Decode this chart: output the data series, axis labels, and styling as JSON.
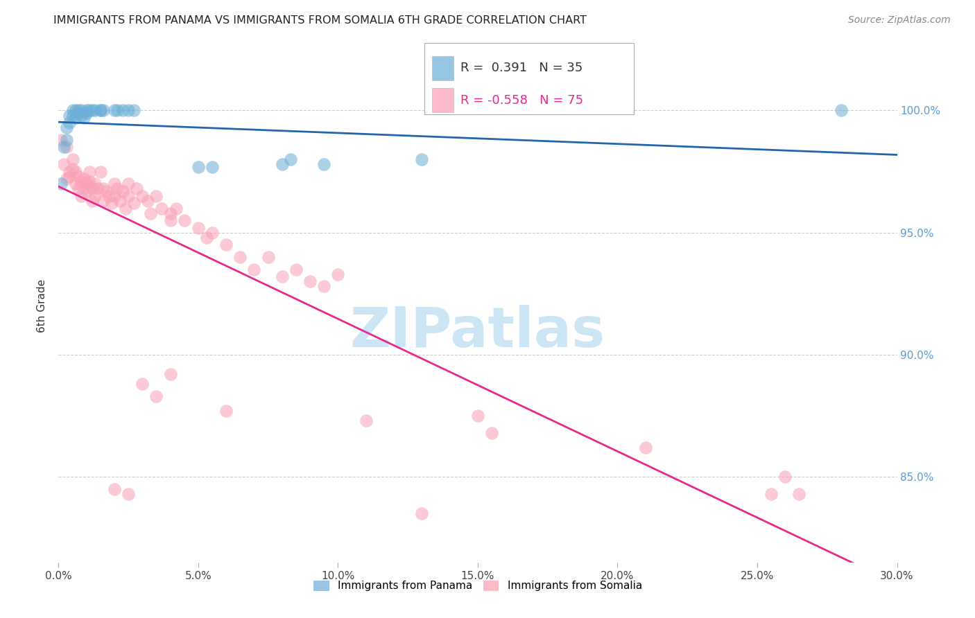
{
  "title": "IMMIGRANTS FROM PANAMA VS IMMIGRANTS FROM SOMALIA 6TH GRADE CORRELATION CHART",
  "source": "Source: ZipAtlas.com",
  "xlabel_ticks": [
    "0.0%",
    "5.0%",
    "10.0%",
    "15.0%",
    "20.0%",
    "25.0%",
    "30.0%"
  ],
  "xlabel_vals": [
    0.0,
    0.05,
    0.1,
    0.15,
    0.2,
    0.25,
    0.3
  ],
  "right_ytick_labels": [
    "100.0%",
    "95.0%",
    "90.0%",
    "85.0%"
  ],
  "right_ytick_vals": [
    1.0,
    0.95,
    0.9,
    0.85
  ],
  "xlim": [
    0.0,
    0.3
  ],
  "ylim": [
    0.815,
    1.025
  ],
  "legend_panama_R": "0.391",
  "legend_panama_N": "35",
  "legend_somalia_R": "-0.558",
  "legend_somalia_N": "75",
  "panama_color": "#6baed6",
  "somalia_color": "#fa9fb5",
  "trendline_panama_color": "#2166ac",
  "trendline_somalia_color": "#e7298a",
  "watermark_text": "ZIPatlas",
  "watermark_color": "#cce5f5",
  "panama_points": [
    [
      0.001,
      0.97
    ],
    [
      0.002,
      0.985
    ],
    [
      0.003,
      0.988
    ],
    [
      0.003,
      0.993
    ],
    [
      0.004,
      0.995
    ],
    [
      0.004,
      0.998
    ],
    [
      0.005,
      0.998
    ],
    [
      0.005,
      1.0
    ],
    [
      0.006,
      1.0
    ],
    [
      0.006,
      0.997
    ],
    [
      0.007,
      0.999
    ],
    [
      0.007,
      1.0
    ],
    [
      0.008,
      1.0
    ],
    [
      0.008,
      0.998
    ],
    [
      0.009,
      0.997
    ],
    [
      0.01,
      0.999
    ],
    [
      0.01,
      1.0
    ],
    [
      0.011,
      1.0
    ],
    [
      0.012,
      1.0
    ],
    [
      0.013,
      1.0
    ],
    [
      0.015,
      1.0
    ],
    [
      0.015,
      1.0
    ],
    [
      0.016,
      1.0
    ],
    [
      0.02,
      1.0
    ],
    [
      0.021,
      1.0
    ],
    [
      0.023,
      1.0
    ],
    [
      0.025,
      1.0
    ],
    [
      0.027,
      1.0
    ],
    [
      0.05,
      0.977
    ],
    [
      0.055,
      0.977
    ],
    [
      0.08,
      0.978
    ],
    [
      0.083,
      0.98
    ],
    [
      0.095,
      0.978
    ],
    [
      0.13,
      0.98
    ],
    [
      0.28,
      1.0
    ]
  ],
  "somalia_points": [
    [
      0.001,
      0.988
    ],
    [
      0.002,
      0.978
    ],
    [
      0.003,
      0.972
    ],
    [
      0.003,
      0.985
    ],
    [
      0.004,
      0.973
    ],
    [
      0.004,
      0.975
    ],
    [
      0.005,
      0.976
    ],
    [
      0.005,
      0.98
    ],
    [
      0.006,
      0.975
    ],
    [
      0.006,
      0.97
    ],
    [
      0.007,
      0.973
    ],
    [
      0.007,
      0.968
    ],
    [
      0.008,
      0.971
    ],
    [
      0.008,
      0.965
    ],
    [
      0.009,
      0.972
    ],
    [
      0.009,
      0.968
    ],
    [
      0.01,
      0.97
    ],
    [
      0.01,
      0.967
    ],
    [
      0.011,
      0.971
    ],
    [
      0.011,
      0.975
    ],
    [
      0.012,
      0.968
    ],
    [
      0.012,
      0.963
    ],
    [
      0.013,
      0.97
    ],
    [
      0.013,
      0.965
    ],
    [
      0.014,
      0.968
    ],
    [
      0.015,
      0.975
    ],
    [
      0.016,
      0.968
    ],
    [
      0.016,
      0.963
    ],
    [
      0.017,
      0.967
    ],
    [
      0.018,
      0.965
    ],
    [
      0.019,
      0.962
    ],
    [
      0.02,
      0.97
    ],
    [
      0.02,
      0.965
    ],
    [
      0.021,
      0.968
    ],
    [
      0.022,
      0.963
    ],
    [
      0.023,
      0.967
    ],
    [
      0.024,
      0.96
    ],
    [
      0.025,
      0.97
    ],
    [
      0.025,
      0.965
    ],
    [
      0.027,
      0.962
    ],
    [
      0.028,
      0.968
    ],
    [
      0.03,
      0.965
    ],
    [
      0.032,
      0.963
    ],
    [
      0.033,
      0.958
    ],
    [
      0.035,
      0.965
    ],
    [
      0.037,
      0.96
    ],
    [
      0.04,
      0.958
    ],
    [
      0.04,
      0.955
    ],
    [
      0.042,
      0.96
    ],
    [
      0.045,
      0.955
    ],
    [
      0.05,
      0.952
    ],
    [
      0.053,
      0.948
    ],
    [
      0.055,
      0.95
    ],
    [
      0.06,
      0.945
    ],
    [
      0.065,
      0.94
    ],
    [
      0.07,
      0.935
    ],
    [
      0.075,
      0.94
    ],
    [
      0.08,
      0.932
    ],
    [
      0.085,
      0.935
    ],
    [
      0.09,
      0.93
    ],
    [
      0.095,
      0.928
    ],
    [
      0.1,
      0.933
    ],
    [
      0.03,
      0.888
    ],
    [
      0.035,
      0.883
    ],
    [
      0.04,
      0.892
    ],
    [
      0.15,
      0.875
    ],
    [
      0.155,
      0.868
    ],
    [
      0.06,
      0.877
    ],
    [
      0.02,
      0.845
    ],
    [
      0.025,
      0.843
    ],
    [
      0.11,
      0.873
    ],
    [
      0.21,
      0.862
    ],
    [
      0.26,
      0.85
    ],
    [
      0.13,
      0.835
    ],
    [
      0.255,
      0.843
    ],
    [
      0.265,
      0.843
    ]
  ]
}
